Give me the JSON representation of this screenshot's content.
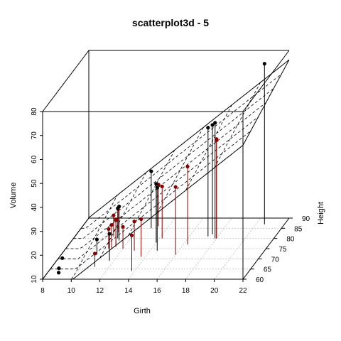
{
  "chart_data": {
    "type": "scatter",
    "title": "scatterplot3d - 5",
    "xlabel": "Girth",
    "ylabel": "Height",
    "zlabel": "Volume",
    "xlim": [
      8,
      22
    ],
    "ylim": [
      60,
      90
    ],
    "zlim": [
      10,
      80
    ],
    "x_ticks": [
      8,
      10,
      12,
      14,
      16,
      18,
      20,
      22
    ],
    "y_ticks": [
      60,
      65,
      70,
      75,
      80,
      85,
      90
    ],
    "z_ticks": [
      10,
      20,
      30,
      40,
      50,
      60,
      70,
      80
    ],
    "grid": true,
    "plane": {
      "intercept": -57.99,
      "girth_coef": 4.708,
      "height_coef": 0.339
    },
    "colors": {
      "above": "#000000",
      "below": "#8b0000",
      "far_below": "#0000ff",
      "plane": "#000000"
    },
    "points": [
      {
        "x": 8.3,
        "y": 70,
        "z": 10.3
      },
      {
        "x": 8.6,
        "y": 65,
        "z": 10.3
      },
      {
        "x": 8.8,
        "y": 63,
        "z": 10.2
      },
      {
        "x": 10.5,
        "y": 72,
        "z": 16.4
      },
      {
        "x": 10.7,
        "y": 81,
        "z": 18.8
      },
      {
        "x": 10.8,
        "y": 83,
        "z": 19.7
      },
      {
        "x": 11.0,
        "y": 66,
        "z": 15.6
      },
      {
        "x": 11.0,
        "y": 75,
        "z": 18.2
      },
      {
        "x": 11.1,
        "y": 80,
        "z": 22.6
      },
      {
        "x": 11.2,
        "y": 75,
        "z": 19.9
      },
      {
        "x": 11.3,
        "y": 79,
        "z": 24.2
      },
      {
        "x": 11.4,
        "y": 76,
        "z": 21.0
      },
      {
        "x": 11.4,
        "y": 76,
        "z": 21.4
      },
      {
        "x": 11.7,
        "y": 69,
        "z": 21.3
      },
      {
        "x": 12.0,
        "y": 75,
        "z": 19.1
      },
      {
        "x": 12.9,
        "y": 74,
        "z": 22.2
      },
      {
        "x": 12.9,
        "y": 85,
        "z": 33.8
      },
      {
        "x": 13.3,
        "y": 86,
        "z": 27.4
      },
      {
        "x": 13.7,
        "y": 71,
        "z": 25.7
      },
      {
        "x": 13.8,
        "y": 64,
        "z": 24.9
      },
      {
        "x": 14.0,
        "y": 78,
        "z": 34.5
      },
      {
        "x": 14.2,
        "y": 80,
        "z": 31.7
      },
      {
        "x": 14.5,
        "y": 74,
        "z": 36.3
      },
      {
        "x": 16.0,
        "y": 72,
        "z": 38.3
      },
      {
        "x": 16.3,
        "y": 77,
        "z": 42.6
      },
      {
        "x": 17.3,
        "y": 81,
        "z": 55.4
      },
      {
        "x": 17.5,
        "y": 82,
        "z": 55.7
      },
      {
        "x": 17.9,
        "y": 80,
        "z": 58.3
      },
      {
        "x": 18.0,
        "y": 80,
        "z": 51.5
      },
      {
        "x": 18.0,
        "y": 80,
        "z": 51.0
      },
      {
        "x": 20.6,
        "y": 87,
        "z": 77.0
      }
    ]
  }
}
